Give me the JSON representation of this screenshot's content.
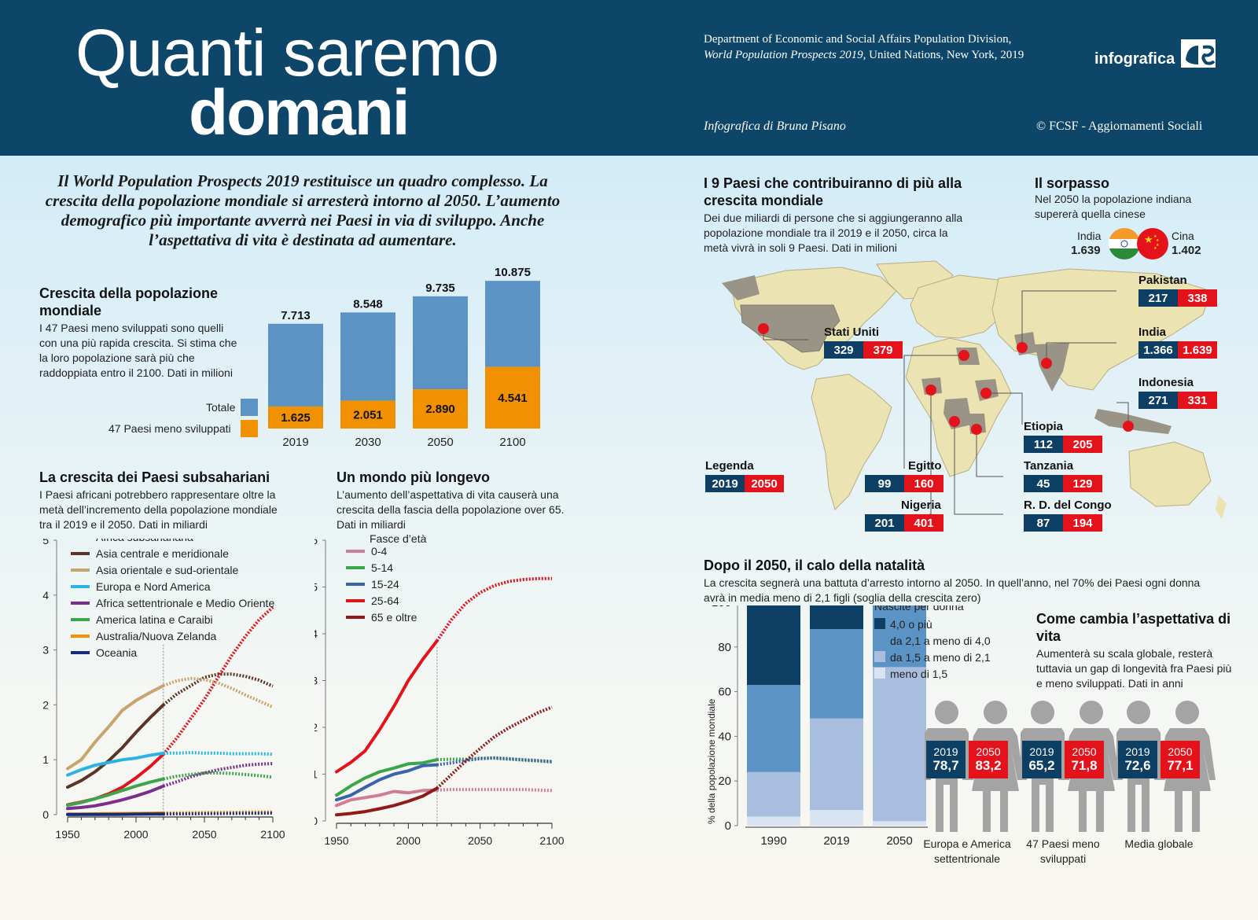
{
  "header": {
    "title_line1": "Quanti saremo",
    "title_line2": "domani",
    "source_line1": "Department of Economic and Social Affairs Population Division,",
    "source_line2_italic": "World Population Prospects 2019,",
    "source_line2_rest": " United Nations, New York, 2019",
    "author": "Infografica di Bruna Pisano",
    "copyright": "© FCSF - Aggiornamenti Sociali",
    "logo": "infografica"
  },
  "intro": "Il World Population Prospects 2019 restituisce un quadro complesso. La crescita della popolazione mondiale si arresterà intorno al 2050. L’aumento demografico più importante avverrà nei Paesi in via di sviluppo. Anche l’aspettativa di vita è destinata ad aumentare.",
  "growth": {
    "title": "Crescita della popolazione mondiale",
    "text": "I 47 Paesi meno sviluppati sono quelli con una più rapida crescita. Si stima che la loro popolazione sarà più che raddoppiata entro il 2100. Dati in milioni",
    "legend_total": "Totale",
    "legend_ldc": "47 Paesi meno sviluppati"
  },
  "subsahara": {
    "title": "La crescita dei Paesi subsahariani",
    "text": "I Paesi africani potrebbero rappresentare oltre la metà dell’incremento della popolazione mondiale tra il 2019 e il 2050. Dati in miliardi"
  },
  "longevo": {
    "title": "Un mondo più longevo",
    "text": "L’aumento dell’aspettativa di vita causerà una crescita della fascia della popolazione over 65. Dati in miliardi",
    "legend_title": "Fasce d’età"
  },
  "map": {
    "title": "I 9 Paesi che contribuiranno di più alla crescita mondiale",
    "text": "Dei due miliardi di persone che si aggiungeranno alla popolazione mondiale tra il 2019 e il 2050, circa la metà vivrà in soli 9 Paesi. Dati in milioni",
    "legend_label": "Legenda",
    "legend_2019": "2019",
    "legend_2050": "2050",
    "countries": [
      {
        "name": "Stati Uniti",
        "v2019": "329",
        "v2050": "379"
      },
      {
        "name": "Pakistan",
        "v2019": "217",
        "v2050": "338"
      },
      {
        "name": "India",
        "v2019": "1.366",
        "v2050": "1.639"
      },
      {
        "name": "Indonesia",
        "v2019": "271",
        "v2050": "331"
      },
      {
        "name": "Etiopia",
        "v2019": "112",
        "v2050": "205"
      },
      {
        "name": "Tanzania",
        "v2019": "45",
        "v2050": "129"
      },
      {
        "name": "R. D. del Congo",
        "v2019": "87",
        "v2050": "194"
      },
      {
        "name": "Egitto",
        "v2019": "99",
        "v2050": "160"
      },
      {
        "name": "Nigeria",
        "v2019": "201",
        "v2050": "401"
      }
    ]
  },
  "sorpasso": {
    "title": "Il sorpasso",
    "text": "Nel 2050 la popolazione indiana supererà quella cinese",
    "india_label": "India",
    "india_value": "1.639",
    "china_label": "Cina",
    "china_value": "1.402"
  },
  "natalita": {
    "title": "Dopo il 2050, il calo della natalità",
    "text": "La crescita segnerà una battuta d’arresto intorno al 2050. In quell’anno, nel 70% dei Paesi ogni donna avrà in media meno di 2,1 figli (soglia della crescita zero)",
    "legend_title": "Nascite per donna"
  },
  "life": {
    "title": "Come cambia l’aspettativa di vita",
    "text": "Aumenterà su scala globale, resterà tuttavia un gap di longevità fra Paesi più e meno sviluppati. Dati in anni",
    "groups": [
      {
        "label": "Europa e America settentrionale",
        "y2019": "2019",
        "v2019": "78,7",
        "y2050": "2050",
        "v2050": "83,2"
      },
      {
        "label": "47 Paesi meno sviluppati",
        "y2019": "2019",
        "v2019": "65,2",
        "y2050": "2050",
        "v2050": "71,8"
      },
      {
        "label": "Media globale",
        "y2019": "2019",
        "v2019": "72,6",
        "y2050": "2050",
        "v2050": "77,1"
      }
    ]
  },
  "colors": {
    "navy": "#0d4668",
    "red": "#e3121b",
    "blue_total": "#5b93c4",
    "orange_ldc": "#f29100",
    "map_land": "#ebe3b2",
    "map_highlight": "#9a9487"
  },
  "chart_data": [
    {
      "type": "bar",
      "title": "Crescita della popolazione mondiale",
      "categories": [
        "2019",
        "2030",
        "2050",
        "2100"
      ],
      "series": [
        {
          "name": "Totale",
          "values": [
            7713,
            8548,
            9735,
            10875
          ],
          "labels": [
            "7.713",
            "8.548",
            "9.735",
            "10.875"
          ]
        },
        {
          "name": "47 Paesi meno sviluppati",
          "values": [
            1625,
            2051,
            2890,
            4541
          ],
          "labels": [
            "1.625",
            "2.051",
            "2.890",
            "4.541"
          ]
        }
      ]
    },
    {
      "type": "line",
      "title": "La crescita dei Paesi subsahariani",
      "xlim": [
        1950,
        2100
      ],
      "ylim": [
        0,
        5
      ],
      "xticks": [
        1950,
        2000,
        2050,
        2100
      ],
      "yticks": [
        0,
        1,
        2,
        3,
        4,
        5
      ],
      "projection_start": 2020,
      "x": [
        1950,
        1960,
        1970,
        1980,
        1990,
        2000,
        2010,
        2020,
        2030,
        2040,
        2050,
        2060,
        2070,
        2080,
        2090,
        2100
      ],
      "series": [
        {
          "name": "Africa subsahariana",
          "color": "#e3121b",
          "values": [
            0.18,
            0.23,
            0.29,
            0.38,
            0.5,
            0.67,
            0.87,
            1.1,
            1.4,
            1.75,
            2.1,
            2.5,
            2.9,
            3.25,
            3.55,
            3.78
          ]
        },
        {
          "name": "Asia centrale e meridionale",
          "color": "#5a3424",
          "values": [
            0.5,
            0.62,
            0.78,
            0.98,
            1.22,
            1.5,
            1.76,
            2.0,
            2.2,
            2.35,
            2.5,
            2.56,
            2.56,
            2.52,
            2.45,
            2.34
          ]
        },
        {
          "name": "Asia orientale e sud-orientale",
          "color": "#c9a46e",
          "values": [
            0.84,
            1.0,
            1.32,
            1.6,
            1.9,
            2.08,
            2.22,
            2.35,
            2.44,
            2.48,
            2.46,
            2.4,
            2.3,
            2.18,
            2.07,
            1.96
          ]
        },
        {
          "name": "Europa e Nord America",
          "color": "#2bb3e3",
          "values": [
            0.72,
            0.82,
            0.9,
            0.95,
            1.0,
            1.03,
            1.08,
            1.12,
            1.12,
            1.13,
            1.12,
            1.12,
            1.11,
            1.11,
            1.11,
            1.1
          ]
        },
        {
          "name": "Africa settentrionale e Medio Oriente",
          "color": "#7a2f8e",
          "values": [
            0.11,
            0.13,
            0.16,
            0.21,
            0.27,
            0.34,
            0.42,
            0.52,
            0.6,
            0.69,
            0.76,
            0.82,
            0.86,
            0.9,
            0.92,
            0.93
          ]
        },
        {
          "name": "America latina e Caraibi",
          "color": "#3aa54b",
          "values": [
            0.17,
            0.22,
            0.29,
            0.36,
            0.44,
            0.52,
            0.59,
            0.65,
            0.7,
            0.73,
            0.76,
            0.76,
            0.75,
            0.73,
            0.71,
            0.68
          ]
        },
        {
          "name": "Australia/Nuova Zelanda",
          "color": "#f29100",
          "values": [
            0.01,
            0.012,
            0.015,
            0.017,
            0.02,
            0.022,
            0.026,
            0.03,
            0.033,
            0.036,
            0.038,
            0.04,
            0.042,
            0.044,
            0.046,
            0.048
          ]
        },
        {
          "name": "Oceania",
          "color": "#1a2a7a",
          "values": [
            0.002,
            0.003,
            0.003,
            0.004,
            0.006,
            0.008,
            0.01,
            0.012,
            0.014,
            0.016,
            0.018,
            0.02,
            0.022,
            0.024,
            0.026,
            0.028
          ]
        }
      ]
    },
    {
      "type": "line",
      "title": "Un mondo più longevo",
      "xlim": [
        1950,
        2100
      ],
      "ylim": [
        0,
        6
      ],
      "xticks": [
        1950,
        2000,
        2050,
        2100
      ],
      "yticks": [
        0,
        1,
        2,
        3,
        4,
        5,
        6
      ],
      "projection_start": 2020,
      "x": [
        1950,
        1960,
        1970,
        1980,
        1990,
        2000,
        2010,
        2020,
        2030,
        2040,
        2050,
        2060,
        2070,
        2080,
        2090,
        2100
      ],
      "series": [
        {
          "name": "0-4",
          "color": "#cf7c98",
          "values": [
            0.33,
            0.45,
            0.5,
            0.55,
            0.63,
            0.6,
            0.65,
            0.66,
            0.67,
            0.67,
            0.67,
            0.67,
            0.67,
            0.67,
            0.66,
            0.65
          ]
        },
        {
          "name": "5-14",
          "color": "#3aa54b",
          "values": [
            0.55,
            0.75,
            0.92,
            1.05,
            1.13,
            1.22,
            1.24,
            1.31,
            1.32,
            1.32,
            1.34,
            1.34,
            1.32,
            1.3,
            1.28,
            1.26
          ]
        },
        {
          "name": "15-24",
          "color": "#3b63ad",
          "values": [
            0.45,
            0.55,
            0.72,
            0.88,
            1.0,
            1.07,
            1.18,
            1.2,
            1.24,
            1.29,
            1.33,
            1.35,
            1.33,
            1.31,
            1.29,
            1.27
          ]
        },
        {
          "name": "25-64",
          "color": "#e3121b",
          "values": [
            1.05,
            1.25,
            1.5,
            1.95,
            2.45,
            3.0,
            3.45,
            3.85,
            4.3,
            4.65,
            4.88,
            5.03,
            5.12,
            5.16,
            5.18,
            5.18
          ]
        },
        {
          "name": "65 e oltre",
          "color": "#8e1a1a",
          "values": [
            0.13,
            0.16,
            0.2,
            0.26,
            0.33,
            0.42,
            0.53,
            0.7,
            0.99,
            1.28,
            1.55,
            1.8,
            1.99,
            2.15,
            2.31,
            2.43
          ]
        }
      ]
    },
    {
      "type": "bar",
      "stacked": true,
      "title": "Dopo il 2050, il calo della natalità",
      "ylabel": "% della popolazione mondiale",
      "ylim": [
        0,
        100
      ],
      "yticks": [
        0,
        20,
        40,
        60,
        80,
        100
      ],
      "categories": [
        "1990",
        "2019",
        "2050"
      ],
      "series": [
        {
          "name": "meno di 1,5",
          "color": "#d8e4f2",
          "values": [
            4,
            7,
            2
          ]
        },
        {
          "name": "da 1,5 a meno di 2,1",
          "color": "#a9bede",
          "values": [
            20,
            41,
            69
          ]
        },
        {
          "name": "da 2,1 a meno di 4,0",
          "color": "#5b93c4",
          "values": [
            39,
            40,
            28
          ]
        },
        {
          "name": "4,0 o più",
          "color": "#0d3e63",
          "values": [
            37,
            12,
            1
          ]
        }
      ]
    }
  ]
}
